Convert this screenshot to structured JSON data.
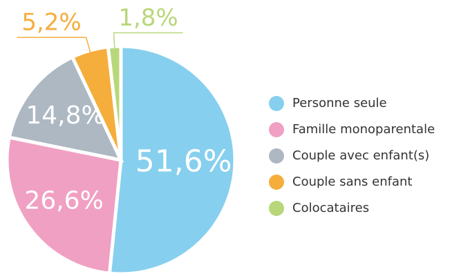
{
  "chart_data": {
    "type": "pie",
    "categories": [
      "Personne seule",
      "Famille monoparentale",
      "Couple avec enfant(s)",
      "Couple sans enfant",
      "Colocataires"
    ],
    "values": [
      51.6,
      26.6,
      14.8,
      5.2,
      1.8
    ],
    "value_labels": [
      "51,6%",
      "26,6%",
      "14,8%",
      "5,2%",
      "1,8%"
    ],
    "colors": [
      "#87cfee",
      "#f0a0c2",
      "#adb8c2",
      "#f5ad3c",
      "#b8d77a"
    ],
    "legend": "right"
  }
}
